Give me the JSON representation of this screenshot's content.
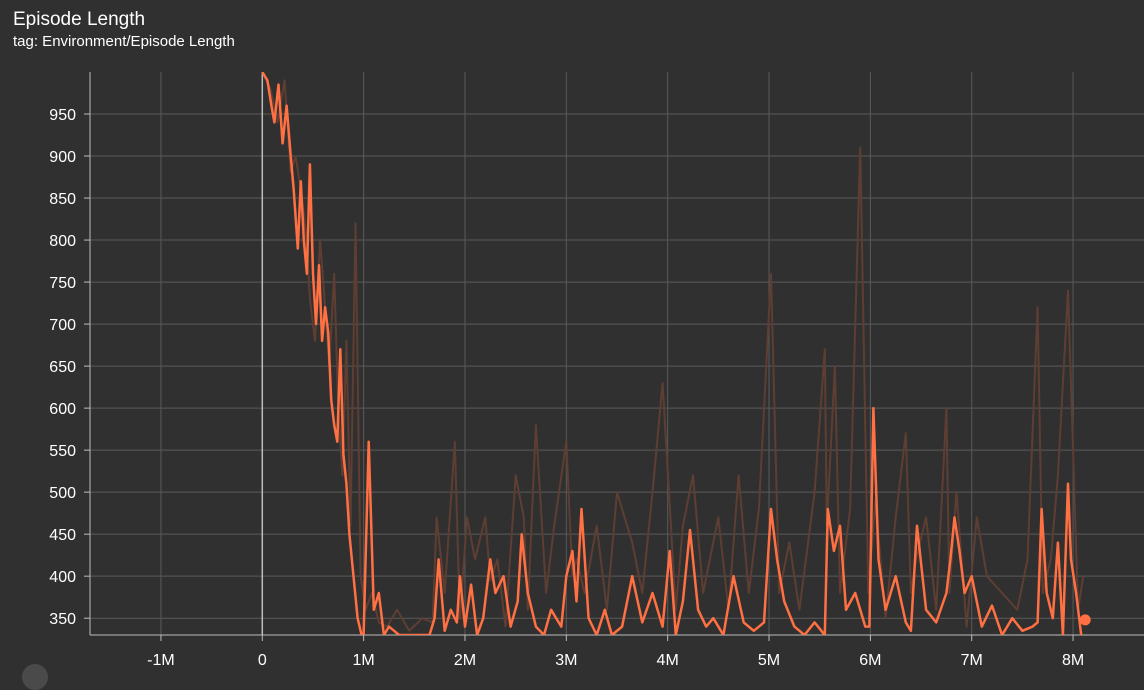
{
  "card": {
    "title": "Episode Length",
    "subtitle": "tag: Environment/Episode Length"
  },
  "colors": {
    "background": "#303030",
    "grid": "#5a5a5a",
    "axis": "#bdbdbd",
    "smoothed": "#ff7043",
    "raw": "#5e3e33"
  },
  "chart_data": {
    "type": "line",
    "title": "Episode Length",
    "xlabel": "",
    "ylabel": "",
    "xlim": [
      -1700000,
      8700000
    ],
    "ylim": [
      330,
      1000
    ],
    "x_ticks": [
      -1000000,
      0,
      1000000,
      2000000,
      3000000,
      4000000,
      5000000,
      6000000,
      7000000,
      8000000
    ],
    "x_tick_labels": [
      "-1M",
      "0",
      "1M",
      "2M",
      "3M",
      "4M",
      "5M",
      "6M",
      "7M",
      "8M"
    ],
    "y_ticks": [
      350,
      400,
      450,
      500,
      550,
      600,
      650,
      700,
      750,
      800,
      850,
      900,
      950
    ],
    "y_tick_labels": [
      "350",
      "400",
      "450",
      "500",
      "550",
      "600",
      "650",
      "700",
      "750",
      "800",
      "850",
      "900",
      "950"
    ],
    "grid": true,
    "series": [
      {
        "style": "raw",
        "color": "#5e3e33",
        "x": [
          0,
          80000,
          150000,
          220000,
          280000,
          330000,
          380000,
          430000,
          470000,
          520000,
          570000,
          620000,
          660000,
          710000,
          750000,
          790000,
          830000,
          870000,
          920000,
          970000,
          1020000,
          1080000,
          1150000,
          1230000,
          1330000,
          1450000,
          1580000,
          1680000,
          1720000,
          1800000,
          1900000,
          1950000,
          2020000,
          2100000,
          2200000,
          2250000,
          2320000,
          2400000,
          2500000,
          2580000,
          2620000,
          2700000,
          2800000,
          2880000,
          3000000,
          3060000,
          3100000,
          3180000,
          3300000,
          3400000,
          3500000,
          3650000,
          3750000,
          3850000,
          3950000,
          4080000,
          4150000,
          4250000,
          4350000,
          4500000,
          4600000,
          4700000,
          4800000,
          4900000,
          5020000,
          5100000,
          5200000,
          5300000,
          5450000,
          5550000,
          5570000,
          5650000,
          5700000,
          5800000,
          5900000,
          5980000,
          6050000,
          6150000,
          6250000,
          6350000,
          6400000,
          6450000,
          6550000,
          6650000,
          6750000,
          6780000,
          6850000,
          6950000,
          7050000,
          7150000,
          7300000,
          7450000,
          7550000,
          7650000,
          7700000,
          7780000,
          7850000,
          7950000,
          8050000,
          8100000
        ],
        "values": [
          1000,
          980,
          940,
          990,
          880,
          900,
          860,
          810,
          730,
          680,
          800,
          720,
          650,
          760,
          600,
          520,
          680,
          460,
          820,
          400,
          360,
          380,
          345,
          340,
          360,
          335,
          350,
          345,
          470,
          380,
          560,
          350,
          470,
          420,
          470,
          395,
          420,
          340,
          520,
          470,
          360,
          580,
          380,
          460,
          560,
          400,
          420,
          380,
          460,
          360,
          500,
          440,
          380,
          500,
          630,
          360,
          460,
          520,
          380,
          470,
          360,
          520,
          380,
          480,
          760,
          380,
          440,
          360,
          500,
          670,
          460,
          650,
          380,
          480,
          910,
          380,
          490,
          350,
          470,
          570,
          380,
          420,
          470,
          360,
          600,
          380,
          500,
          340,
          470,
          400,
          380,
          360,
          420,
          720,
          380,
          420,
          520,
          740,
          360,
          400
        ]
      },
      {
        "style": "smoothed",
        "color": "#ff7043",
        "x": [
          0,
          50000,
          90000,
          120000,
          160000,
          200000,
          240000,
          280000,
          310000,
          350000,
          380000,
          410000,
          440000,
          470000,
          500000,
          530000,
          560000,
          590000,
          620000,
          650000,
          680000,
          710000,
          740000,
          770000,
          800000,
          830000,
          860000,
          900000,
          940000,
          980000,
          1000000,
          1050000,
          1100000,
          1150000,
          1200000,
          1250000,
          1350000,
          1450000,
          1550000,
          1650000,
          1700000,
          1740000,
          1800000,
          1860000,
          1920000,
          1950000,
          2000000,
          2060000,
          2120000,
          2180000,
          2250000,
          2300000,
          2380000,
          2450000,
          2520000,
          2560000,
          2620000,
          2700000,
          2780000,
          2850000,
          2950000,
          3000000,
          3060000,
          3100000,
          3150000,
          3220000,
          3300000,
          3380000,
          3450000,
          3550000,
          3650000,
          3750000,
          3850000,
          3950000,
          4020000,
          4080000,
          4150000,
          4220000,
          4300000,
          4380000,
          4450000,
          4550000,
          4650000,
          4750000,
          4850000,
          4950000,
          5020000,
          5080000,
          5150000,
          5250000,
          5350000,
          5450000,
          5550000,
          5580000,
          5640000,
          5700000,
          5760000,
          5850000,
          5950000,
          5990000,
          6030000,
          6080000,
          6150000,
          6250000,
          6350000,
          6400000,
          6460000,
          6550000,
          6650000,
          6750000,
          6790000,
          6830000,
          6880000,
          6930000,
          7000000,
          7100000,
          7200000,
          7300000,
          7400000,
          7500000,
          7600000,
          7650000,
          7690000,
          7740000,
          7800000,
          7850000,
          7900000,
          7950000,
          7980000,
          8030000,
          8080000
        ],
        "values": [
          1000,
          990,
          960,
          940,
          985,
          915,
          960,
          900,
          860,
          790,
          870,
          800,
          760,
          890,
          760,
          700,
          770,
          680,
          720,
          690,
          610,
          580,
          560,
          670,
          545,
          510,
          450,
          400,
          350,
          330,
          330,
          560,
          360,
          380,
          330,
          340,
          330,
          330,
          330,
          330,
          350,
          420,
          335,
          360,
          345,
          400,
          340,
          390,
          330,
          350,
          420,
          380,
          400,
          340,
          370,
          450,
          380,
          340,
          330,
          360,
          340,
          400,
          430,
          370,
          480,
          350,
          330,
          360,
          330,
          340,
          400,
          345,
          380,
          340,
          430,
          330,
          370,
          455,
          360,
          340,
          350,
          330,
          400,
          345,
          335,
          345,
          480,
          420,
          370,
          340,
          330,
          345,
          330,
          480,
          430,
          460,
          360,
          380,
          340,
          340,
          600,
          420,
          360,
          400,
          345,
          335,
          460,
          360,
          345,
          380,
          420,
          470,
          430,
          380,
          400,
          340,
          365,
          330,
          350,
          335,
          340,
          345,
          480,
          380,
          350,
          440,
          330,
          510,
          420,
          380,
          330
        ]
      }
    ],
    "last_point": {
      "x": 8120000,
      "y": 348
    }
  }
}
